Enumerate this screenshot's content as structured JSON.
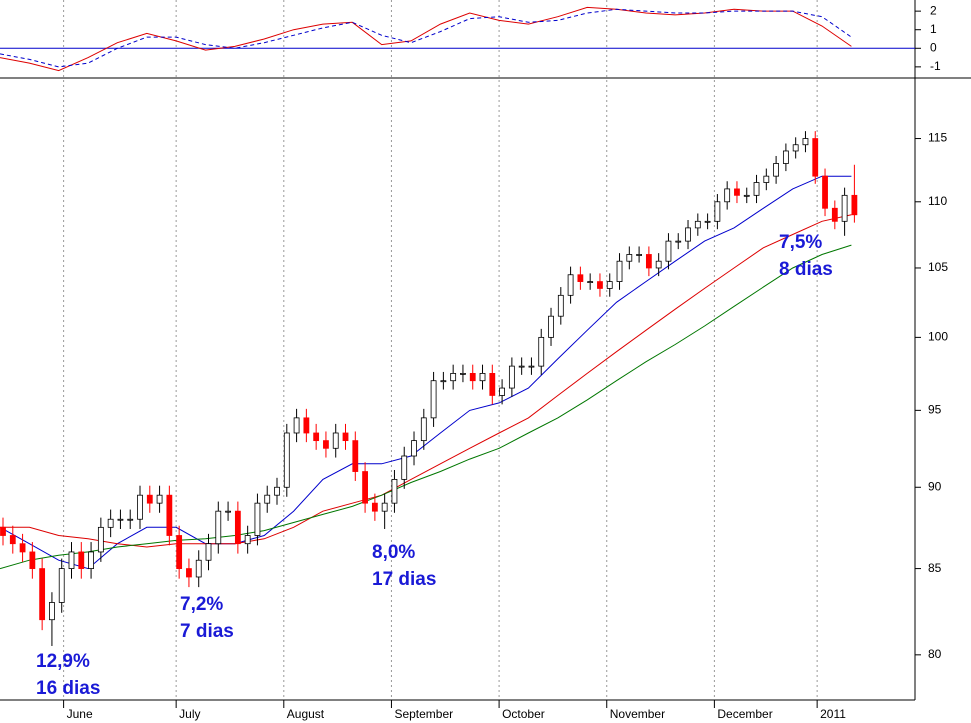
{
  "chart_data": [
    {
      "type": "line",
      "x": [
        0,
        6,
        12,
        18,
        24,
        30,
        36,
        42,
        48,
        54,
        60,
        66,
        72,
        78,
        84,
        90,
        96,
        102,
        108,
        114,
        120,
        126,
        132,
        138,
        144,
        150,
        156,
        162,
        168,
        174
      ],
      "xlim": [
        0,
        187
      ],
      "ylim": [
        -1.6,
        2.6
      ],
      "yticks": [
        2,
        1,
        0,
        -1
      ],
      "zero_line_color": "#0000cc",
      "series": [
        {
          "color": "#dd0000",
          "dashed": false,
          "values": [
            -0.5,
            -0.8,
            -1.2,
            -0.5,
            0.3,
            0.8,
            0.4,
            -0.1,
            0.1,
            0.5,
            1.0,
            1.3,
            1.4,
            0.2,
            0.4,
            1.3,
            1.9,
            1.5,
            1.3,
            1.7,
            2.2,
            2.1,
            1.9,
            1.8,
            1.9,
            2.1,
            2.0,
            2.0,
            1.2,
            0.1
          ]
        },
        {
          "color": "#0000cc",
          "dashed": true,
          "values": [
            -0.3,
            -0.6,
            -1.0,
            -0.8,
            0.0,
            0.6,
            0.6,
            0.2,
            0.0,
            0.3,
            0.7,
            1.1,
            1.4,
            0.7,
            0.3,
            0.9,
            1.6,
            1.7,
            1.4,
            1.5,
            1.9,
            2.1,
            2.0,
            1.9,
            1.9,
            2.0,
            2.0,
            2.0,
            1.7,
            0.6
          ]
        }
      ]
    },
    {
      "type": "candlestick",
      "log_scale": true,
      "xlim": [
        0,
        187
      ],
      "xticks": [
        {
          "value": 13,
          "label": "June"
        },
        {
          "value": 36,
          "label": "July"
        },
        {
          "value": 58,
          "label": "August"
        },
        {
          "value": 80,
          "label": "September"
        },
        {
          "value": 102,
          "label": "October"
        },
        {
          "value": 124,
          "label": "November"
        },
        {
          "value": 146,
          "label": "December"
        },
        {
          "value": 167,
          "label": "2011"
        }
      ],
      "ylim": [
        77.5,
        120
      ],
      "yticks": [
        80,
        85,
        90,
        95,
        100,
        105,
        110,
        115
      ],
      "up_color": "#ffffff",
      "down_color": "#ff0000",
      "x": [
        0,
        2,
        4,
        6,
        8,
        10,
        12,
        14,
        16,
        18,
        20,
        22,
        24,
        26,
        28,
        30,
        32,
        34,
        36,
        38,
        40,
        42,
        44,
        46,
        48,
        50,
        52,
        54,
        56,
        58,
        60,
        62,
        64,
        66,
        68,
        70,
        72,
        74,
        76,
        78,
        80,
        82,
        84,
        86,
        88,
        90,
        92,
        94,
        96,
        98,
        100,
        102,
        104,
        106,
        108,
        110,
        112,
        114,
        116,
        118,
        120,
        122,
        124,
        126,
        128,
        130,
        132,
        134,
        136,
        138,
        140,
        142,
        144,
        146,
        148,
        150,
        152,
        154,
        156,
        158,
        160,
        162,
        164,
        166,
        168,
        170,
        172,
        174
      ],
      "open": [
        87.5,
        87,
        86.5,
        86,
        85,
        82,
        83,
        85,
        86,
        85,
        86,
        87.5,
        88,
        88,
        88,
        89.5,
        89,
        89.5,
        87,
        85,
        84.5,
        85.5,
        86.5,
        88.5,
        88.5,
        86.5,
        87,
        89,
        89.5,
        90,
        93.5,
        94.5,
        93.5,
        93,
        92.5,
        93.5,
        93,
        91,
        89,
        88.5,
        89,
        90.5,
        92,
        93,
        94.5,
        97,
        97,
        97.5,
        97.5,
        97,
        97.5,
        96,
        96.5,
        98,
        98,
        98,
        100,
        101.5,
        103,
        104.5,
        104,
        104,
        103.5,
        104,
        105.5,
        106,
        106,
        105,
        105.5,
        107,
        107,
        108,
        108.5,
        108.5,
        110,
        111,
        110.5,
        110.5,
        111.5,
        112,
        113,
        114,
        114.5,
        115,
        112,
        109.5,
        108.5,
        110.5
      ],
      "high": [
        88.1,
        87.6,
        87.1,
        86.6,
        85.6,
        83.6,
        85.6,
        86.6,
        86.6,
        86.6,
        88.1,
        88.6,
        88.6,
        88.6,
        90.1,
        90.1,
        90.1,
        90.1,
        87.6,
        85.6,
        86.1,
        87.1,
        89.1,
        89.1,
        89.1,
        87.6,
        89.6,
        90.1,
        90.6,
        94.1,
        95.1,
        95.1,
        94.1,
        93.6,
        94.1,
        94.1,
        93.6,
        91.6,
        89.6,
        89.6,
        91.1,
        92.6,
        93.6,
        95.1,
        97.6,
        97.6,
        98.1,
        98.1,
        98.1,
        98.1,
        98.1,
        97.1,
        98.6,
        98.6,
        98.6,
        100.6,
        102.1,
        103.6,
        105.1,
        105.1,
        104.6,
        104.6,
        104.6,
        106.1,
        106.6,
        106.6,
        106.6,
        106.1,
        107.6,
        107.6,
        108.6,
        109.1,
        109.1,
        110.6,
        111.6,
        111.6,
        111.1,
        112.1,
        112.6,
        113.6,
        114.6,
        115.1,
        115.6,
        115.6,
        112.6,
        110.1,
        111.1,
        112.9
      ],
      "low": [
        86.4,
        85.9,
        85.4,
        84.4,
        81.4,
        80.5,
        82.4,
        84.4,
        84.4,
        84.4,
        85.4,
        86.9,
        87.4,
        87.4,
        87.4,
        88.4,
        88.4,
        86.4,
        84.4,
        83.9,
        83.9,
        84.9,
        85.9,
        87.9,
        85.9,
        85.9,
        86.4,
        88.4,
        88.9,
        89.4,
        92.9,
        92.9,
        92.4,
        91.9,
        91.9,
        92.4,
        90.4,
        88.4,
        87.9,
        87.4,
        88.4,
        89.9,
        91.4,
        92.4,
        93.9,
        96.4,
        96.4,
        96.9,
        96.4,
        96.4,
        95.4,
        95.4,
        95.9,
        97.4,
        97.4,
        97.4,
        99.4,
        100.9,
        102.4,
        103.4,
        103.4,
        102.9,
        102.9,
        103.4,
        104.9,
        105.4,
        104.4,
        104.4,
        104.9,
        106.4,
        106.4,
        107.4,
        107.9,
        107.9,
        109.4,
        109.9,
        109.9,
        109.9,
        110.9,
        111.4,
        112.4,
        113.4,
        113.9,
        111.4,
        108.9,
        107.9,
        107.4,
        108.4
      ],
      "close": [
        87,
        86.5,
        86,
        85,
        82,
        83,
        85,
        86,
        85,
        86,
        87.5,
        88,
        88,
        88,
        89.5,
        89,
        89.5,
        87,
        85,
        84.5,
        85.5,
        86.5,
        88.5,
        88.5,
        86.5,
        87,
        89,
        89.5,
        90,
        93.5,
        94.5,
        93.5,
        93,
        92.5,
        93.5,
        93,
        91,
        89,
        88.5,
        89,
        90.5,
        92,
        93,
        94.5,
        97,
        97,
        97.5,
        97.5,
        97,
        97.5,
        96,
        96.5,
        98,
        98,
        98,
        100,
        101.5,
        103,
        104.5,
        104,
        104,
        103.5,
        104,
        105.5,
        106,
        106,
        105,
        105.5,
        107,
        107,
        108,
        108.5,
        108.5,
        110,
        111,
        110.5,
        110.5,
        111.5,
        112,
        113,
        114,
        114.5,
        115,
        112,
        109.5,
        108.5,
        110.5,
        109
      ],
      "series": [
        {
          "color": "#0000cc",
          "x": [
            0,
            6,
            12,
            18,
            24,
            30,
            36,
            42,
            48,
            54,
            60,
            66,
            72,
            78,
            84,
            90,
            96,
            102,
            108,
            114,
            120,
            126,
            132,
            138,
            144,
            150,
            156,
            162,
            168,
            174
          ],
          "values": [
            87.5,
            86.5,
            85.5,
            85,
            86.5,
            87.5,
            87.5,
            86.5,
            86.5,
            87,
            88.5,
            90.5,
            91.5,
            91.5,
            92,
            93.5,
            95,
            95.5,
            96.5,
            98.5,
            100.5,
            102.5,
            104,
            105.5,
            107,
            108,
            109.5,
            111,
            112,
            112
          ]
        },
        {
          "color": "#dd0000",
          "x": [
            0,
            6,
            12,
            18,
            24,
            30,
            36,
            42,
            48,
            54,
            60,
            66,
            72,
            78,
            84,
            90,
            96,
            102,
            108,
            114,
            120,
            126,
            132,
            138,
            144,
            150,
            156,
            162,
            168,
            174
          ],
          "values": [
            87.5,
            87.5,
            87,
            86.8,
            86.5,
            86.3,
            86.5,
            86.5,
            86.5,
            86.8,
            87.5,
            88.5,
            89,
            89.5,
            90.5,
            91.5,
            92.5,
            93.5,
            94.5,
            96,
            97.5,
            99,
            100.5,
            102,
            103.5,
            105,
            106.5,
            107.5,
            108.5,
            109
          ]
        },
        {
          "color": "#007700",
          "x": [
            0,
            6,
            12,
            18,
            24,
            30,
            36,
            42,
            48,
            54,
            60,
            66,
            72,
            78,
            84,
            90,
            96,
            102,
            108,
            114,
            120,
            126,
            132,
            138,
            144,
            150,
            156,
            162,
            168,
            174
          ],
          "values": [
            85,
            85.5,
            85.8,
            86,
            86.3,
            86.5,
            86.7,
            86.8,
            87,
            87.3,
            87.8,
            88.3,
            88.8,
            89.5,
            90.3,
            91,
            91.8,
            92.5,
            93.5,
            94.5,
            95.7,
            97,
            98.3,
            99.5,
            100.8,
            102.2,
            103.6,
            105,
            106,
            106.7
          ]
        }
      ],
      "annotations": [
        [
          "12,9%",
          "16 dias"
        ],
        [
          "7,2%",
          "7 dias"
        ],
        [
          "8,0%",
          "17 dias"
        ],
        [
          "7,5%",
          "8 dias"
        ]
      ]
    }
  ]
}
